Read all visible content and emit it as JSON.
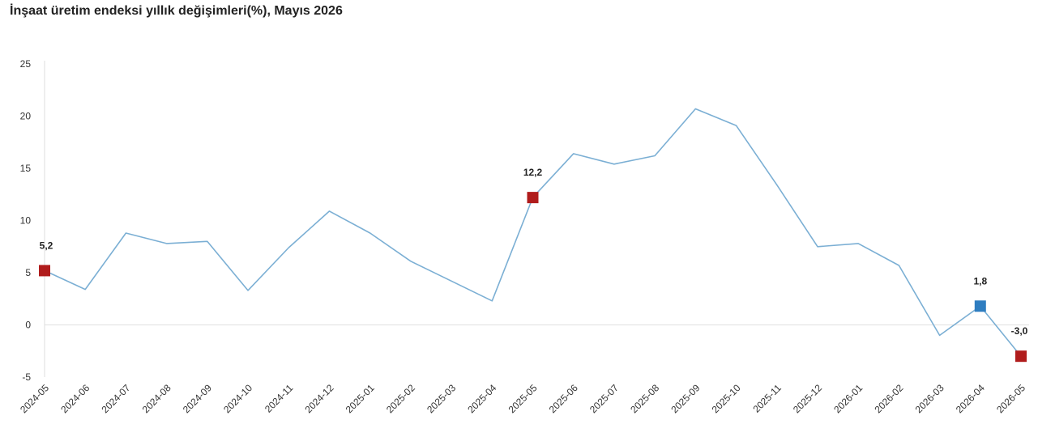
{
  "title": "İnşaat üretim endeksi yıllık değişimleri(%), Mayıs 2026",
  "colors": {
    "line": "#7bafd4",
    "highlight": "#b01c1c",
    "current": "#2e7dc0",
    "axis": "#dddddd",
    "grid": "#e0e0e0"
  },
  "chart_data": {
    "type": "line",
    "title": "İnşaat üretim endeksi yıllık değişimleri(%), Mayıs 2026",
    "xlabel": "",
    "ylabel": "",
    "ylim": [
      -5,
      25
    ],
    "yticks": [
      "-5",
      "0",
      "5",
      "10",
      "15",
      "20",
      "25"
    ],
    "grid": false,
    "x": [
      "2024-05",
      "2024-06",
      "2024-07",
      "2024-08",
      "2024-09",
      "2024-10",
      "2024-11",
      "2024-12",
      "2025-01",
      "2025-02",
      "2025-03",
      "2025-04",
      "2025-05",
      "2025-06",
      "2025-07",
      "2025-08",
      "2025-09",
      "2025-10",
      "2025-11",
      "2025-12",
      "2026-01",
      "2026-02",
      "2026-03",
      "2026-04",
      "2026-05"
    ],
    "series": [
      {
        "values": [
          5.2,
          3.4,
          8.8,
          7.8,
          8.0,
          3.3,
          7.4,
          10.9,
          8.8,
          6.1,
          4.2,
          2.3,
          12.2,
          16.4,
          15.4,
          16.2,
          20.7,
          19.1,
          13.4,
          7.5,
          7.8,
          5.7,
          -1.0,
          1.8,
          -3.0
        ]
      }
    ],
    "markers": [
      {
        "index": 0,
        "label": "5,2",
        "style": "highlight"
      },
      {
        "index": 12,
        "label": "12,2",
        "style": "highlight"
      },
      {
        "index": 23,
        "label": "1,8",
        "style": "current"
      },
      {
        "index": 24,
        "label": "-3,0",
        "style": "highlight"
      }
    ]
  }
}
